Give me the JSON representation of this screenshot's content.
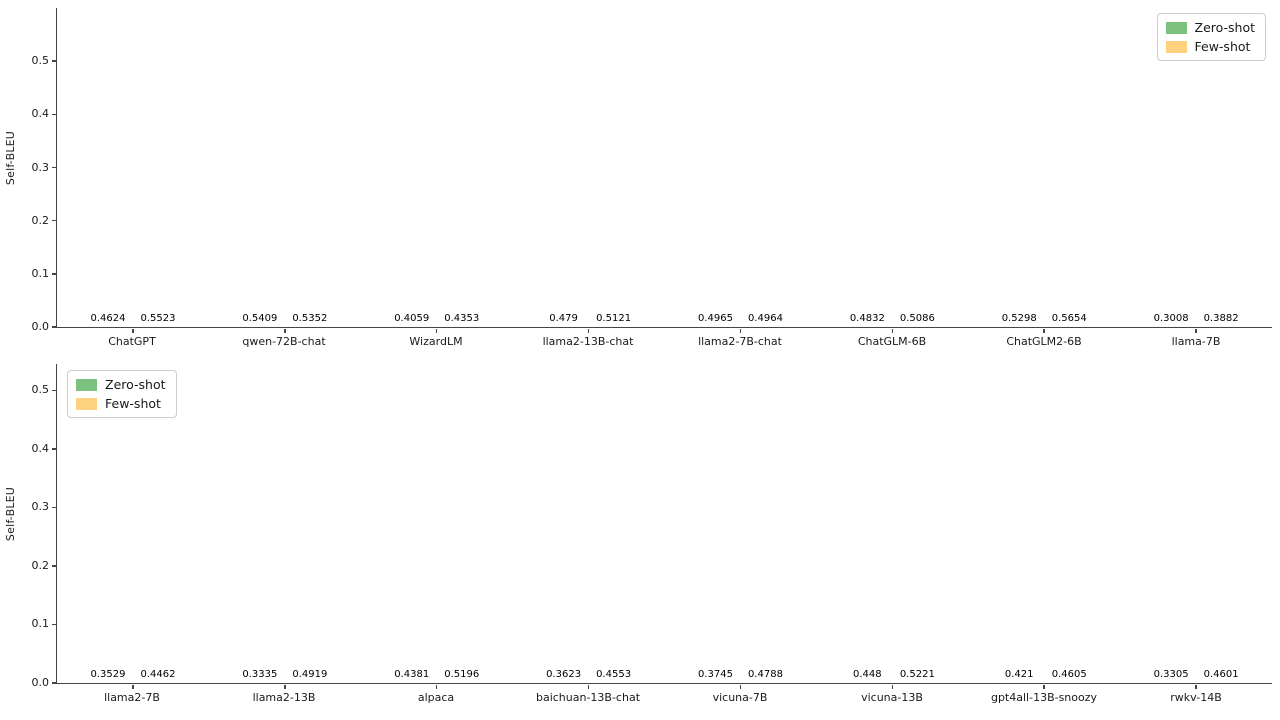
{
  "figure": {
    "background": "#ffffff"
  },
  "colors": {
    "zero_shot": "#7dc17f",
    "few_shot": "#fdd17e",
    "axis": "#454545",
    "value_label": "#000000",
    "legend_border": "#cccccc"
  },
  "chart_data": [
    {
      "type": "bar",
      "title": "",
      "xlabel": "",
      "ylabel": "Self-BLEU",
      "categories": [
        "ChatGPT",
        "qwen-72B-chat",
        "WizardLM",
        "llama2-13B-chat",
        "llama2-7B-chat",
        "ChatGLM-6B",
        "ChatGLM2-6B",
        "llama-7B"
      ],
      "series": [
        {
          "name": "Zero-shot",
          "color": "#7dc17f",
          "values": [
            0.4624,
            0.5409,
            0.4059,
            0.479,
            0.4965,
            0.4832,
            0.5298,
            0.3008
          ]
        },
        {
          "name": "Few-shot",
          "color": "#fdd17e",
          "values": [
            0.5523,
            0.5352,
            0.4353,
            0.5121,
            0.4964,
            0.5086,
            0.5654,
            0.3882
          ]
        }
      ],
      "yticks": [
        0.0,
        0.1,
        0.2,
        0.3,
        0.4,
        0.5
      ],
      "ylim": [
        0,
        0.6
      ],
      "grid": false,
      "bar_value_labels": true,
      "legend_position": "top-right"
    },
    {
      "type": "bar",
      "title": "",
      "xlabel": "",
      "ylabel": "Self-BLEU",
      "categories": [
        "llama2-7B",
        "llama2-13B",
        "alpaca",
        "baichuan-13B-chat",
        "vicuna-7B",
        "vicuna-13B",
        "gpt4all-13B-snoozy",
        "rwkv-14B"
      ],
      "series": [
        {
          "name": "Zero-shot",
          "color": "#7dc17f",
          "values": [
            0.3529,
            0.3335,
            0.4381,
            0.3623,
            0.3745,
            0.448,
            0.421,
            0.3305
          ]
        },
        {
          "name": "Few-shot",
          "color": "#fdd17e",
          "values": [
            0.4462,
            0.4919,
            0.5196,
            0.4553,
            0.4788,
            0.5221,
            0.4605,
            0.4601
          ]
        }
      ],
      "yticks": [
        0.0,
        0.1,
        0.2,
        0.3,
        0.4,
        0.5
      ],
      "ylim": [
        0,
        0.545
      ],
      "grid": false,
      "bar_value_labels": true,
      "legend_position": "top-left"
    }
  ]
}
